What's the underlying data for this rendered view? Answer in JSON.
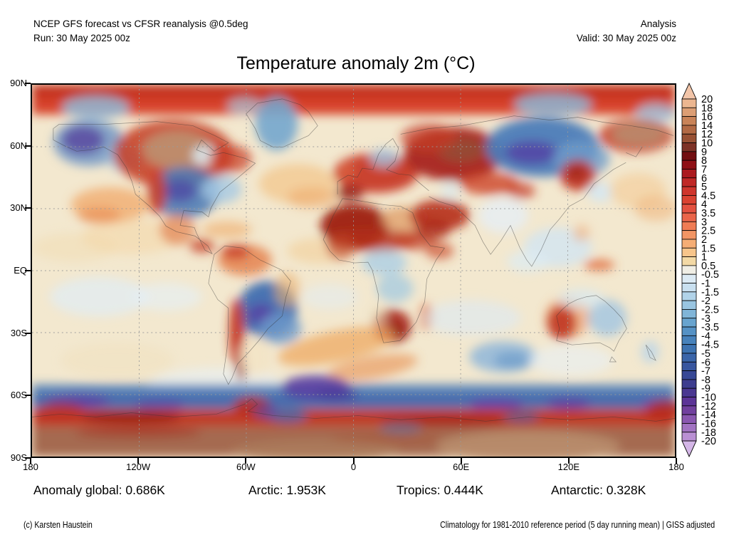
{
  "header": {
    "left1": "NCEP GFS forecast vs CFSR reanalysis @0.5deg",
    "left2": "Run: 30 May 2025 00z",
    "right1": "Analysis",
    "right2": "Valid: 30 May 2025 00z"
  },
  "title": "Temperature anomaly 2m (°C)",
  "map": {
    "lat_ticks": [
      "90N",
      "60N",
      "30N",
      "EQ",
      "30S",
      "60S",
      "90S"
    ],
    "lon_ticks": [
      "180",
      "120W",
      "60W",
      "0",
      "60E",
      "120E",
      "180"
    ]
  },
  "colorbar": {
    "labels": [
      "20",
      "18",
      "16",
      "14",
      "12",
      "10",
      "9",
      "8",
      "7",
      "6",
      "5",
      "4.5",
      "4",
      "3.5",
      "3",
      "2.5",
      "2",
      "1.5",
      "1",
      "0.5",
      "-0.5",
      "-1",
      "-1.5",
      "-2",
      "-2.5",
      "-3",
      "-3.5",
      "-4",
      "-4.5",
      "-5",
      "-6",
      "-7",
      "-8",
      "-9",
      "-10",
      "-12",
      "-14",
      "-16",
      "-18",
      "-20"
    ],
    "colors": [
      "#ecb690",
      "#dc9e74",
      "#c98358",
      "#b26a45",
      "#985134",
      "#7d3226",
      "#720e11",
      "#8f1016",
      "#ab1a1f",
      "#c02826",
      "#cf352c",
      "#da4231",
      "#e35140",
      "#ea654a",
      "#ef7c55",
      "#f29564",
      "#f5ad75",
      "#f7c58b",
      "#f3d9a5",
      "#f0eee5",
      "#dceaf4",
      "#c9e0f0",
      "#b1d3e9",
      "#99c5e1",
      "#80b5d8",
      "#68a4cf",
      "#5592c5",
      "#4782bb",
      "#3d73b1",
      "#3a65a9",
      "#38569f",
      "#374896",
      "#3d3d8f",
      "#4a3791",
      "#5c3497",
      "#71409e",
      "#8a57b0",
      "#a273c2",
      "#ba90d4"
    ],
    "arrow_top": "#f2c5a9",
    "arrow_bottom": "#d4b6e7"
  },
  "stats": {
    "items": [
      {
        "label": "Anomaly global:",
        "value": "0.686K"
      },
      {
        "label": "Arctic:",
        "value": "1.953K"
      },
      {
        "label": "Tropics:",
        "value": "0.444K"
      },
      {
        "label": "Antarctic:",
        "value": "0.328K"
      }
    ]
  },
  "footer": {
    "left": "(c) Karsten Haustein",
    "right": "Climatology for 1981-2010 reference period (5 day running mean) | GISS adjusted"
  },
  "chart_data": {
    "type": "heatmap",
    "title": "Temperature anomaly 2m (°C)",
    "model": "NCEP GFS forecast vs CFSR reanalysis @0.5deg",
    "product": "Analysis",
    "run": "30 May 2025 00z",
    "valid": "30 May 2025 00z",
    "units": "°C",
    "projection": "equirectangular global (90N-90S, 180W-180E)",
    "xlabel": "longitude",
    "ylabel": "latitude",
    "x_ticks": [
      "180",
      "120W",
      "60W",
      "0",
      "60E",
      "120E",
      "180"
    ],
    "y_ticks": [
      "90N",
      "60N",
      "30N",
      "EQ",
      "30S",
      "60S",
      "90S"
    ],
    "grid": "dashed 30-degree graticule",
    "legend_position": "right colorbar with out-of-range arrows",
    "colorbar_levels": [
      20,
      18,
      16,
      14,
      12,
      10,
      9,
      8,
      7,
      6,
      5,
      4.5,
      4,
      3.5,
      3,
      2.5,
      2,
      1.5,
      1,
      0.5,
      -0.5,
      -1,
      -1.5,
      -2,
      -2.5,
      -3,
      -3.5,
      -4,
      -4.5,
      -5,
      -6,
      -7,
      -8,
      -9,
      -10,
      -12,
      -14,
      -16,
      -18,
      -20
    ],
    "summary_stats": {
      "global_anomaly_K": 0.686,
      "arctic_K": 1.953,
      "tropics_K": 0.444,
      "antarctic_K": 0.328
    },
    "notable_anomalies": [
      {
        "region": "Arctic cap 80-90N",
        "anomaly_C": "+4 to +8"
      },
      {
        "region": "Central Canada",
        "anomaly_C": "+10 to +16"
      },
      {
        "region": "Alaska",
        "anomaly_C": "-8 to -12"
      },
      {
        "region": "Central United States",
        "anomaly_C": "-4 to -8"
      },
      {
        "region": "Greenland",
        "anomaly_C": "-2 to -5"
      },
      {
        "region": "Western Europe / Iberia",
        "anomaly_C": "+4 to +9"
      },
      {
        "region": "Western Russia",
        "anomaly_C": "+6 to +12"
      },
      {
        "region": "Central/Eastern Siberia",
        "anomaly_C": "-4 to -10"
      },
      {
        "region": "Chukotka (NE Siberia)",
        "anomaly_C": "+10 to +14"
      },
      {
        "region": "Northwest Africa / Sahara",
        "anomaly_C": "+6 to +9"
      },
      {
        "region": "Middle East",
        "anomaly_C": "+4 to +7"
      },
      {
        "region": "India / SE Asia",
        "anomaly_C": "-1 to -2"
      },
      {
        "region": "Central Brazil / Paraguay",
        "anomaly_C": "-6 to -10"
      },
      {
        "region": "Chile / W Argentina strip",
        "anomaly_C": "+4 to +7"
      },
      {
        "region": "Southern Africa",
        "anomaly_C": "+5 to +8"
      },
      {
        "region": "Central-west Australia",
        "anomaly_C": "+4 to +6"
      },
      {
        "region": "Eastern Australia",
        "anomaly_C": "-2 to -4"
      },
      {
        "region": "Southern Ocean ~60S band",
        "anomaly_C": "-4 to -10"
      },
      {
        "region": "Antarctic coastal band",
        "anomaly_C": "+5 to +9"
      },
      {
        "region": "Antarctic interior",
        "anomaly_C": "+10 to +16"
      }
    ]
  }
}
